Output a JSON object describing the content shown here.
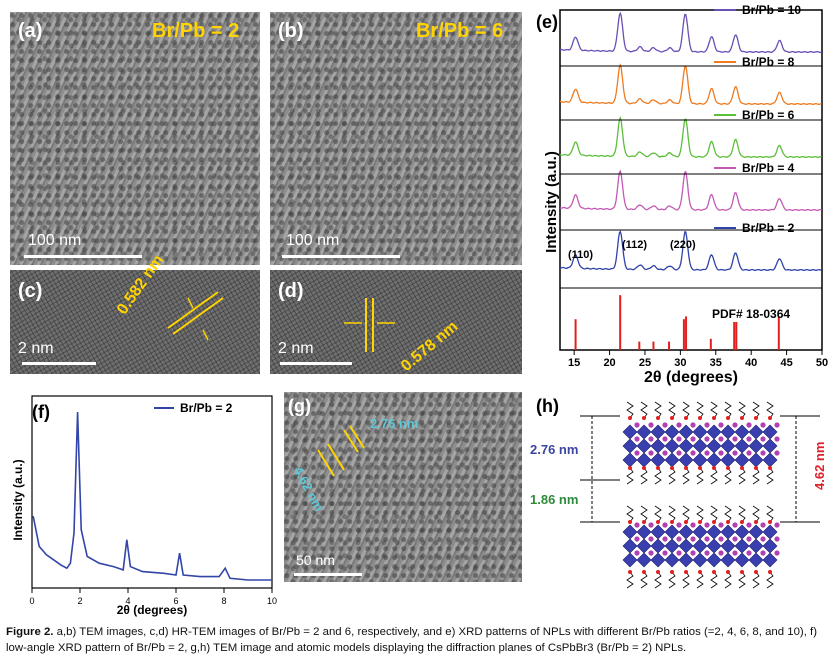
{
  "panel_a": {
    "label": "(a)",
    "ratio": "Br/Pb = 2",
    "scale": "100 nm"
  },
  "panel_b": {
    "label": "(b)",
    "ratio": "Br/Pb = 6",
    "scale": "100 nm"
  },
  "panel_c": {
    "label": "(c)",
    "spacing": "0.582 nm",
    "scale": "2 nm"
  },
  "panel_d": {
    "label": "(d)",
    "spacing": "0.578 nm",
    "scale": "2 nm"
  },
  "panel_e": {
    "label": "(e)",
    "ylabel": "Intensity (a.u.)",
    "xlabel": "2θ (degrees)",
    "xticks": [
      "15",
      "20",
      "25",
      "30",
      "35",
      "40",
      "45",
      "50"
    ],
    "peak_labels": [
      "(110)",
      "(112)",
      "(220)"
    ],
    "reference_label": "PDF# 18-0364",
    "series": [
      {
        "name": "Br/Pb = 10",
        "color": "#6a4fb5"
      },
      {
        "name": "Br/Pb = 8",
        "color": "#f07a1e"
      },
      {
        "name": "Br/Pb = 6",
        "color": "#5cbf3a"
      },
      {
        "name": "Br/Pb = 4",
        "color": "#c25ab5"
      },
      {
        "name": "Br/Pb = 2",
        "color": "#2f43a8"
      }
    ]
  },
  "panel_f": {
    "label": "(f)",
    "legend": "Br/Pb = 2",
    "ylabel": "Intensity (a.u.)",
    "xlabel": "2θ (degrees)",
    "xticks": [
      "0",
      "2",
      "4",
      "6",
      "8",
      "10"
    ]
  },
  "panel_g": {
    "label": "(g)",
    "d1": "2.76 nm",
    "d2": "4.62 nm",
    "scale": "50 nm"
  },
  "panel_h": {
    "label": "(h)",
    "d1": "2.76 nm",
    "d2": "1.86 nm",
    "d3": "4.62 nm"
  },
  "chart_data": [
    {
      "type": "line",
      "panel": "e",
      "xlabel": "2θ (degrees)",
      "ylabel": "Intensity (a.u.)",
      "xlim": [
        13,
        50
      ],
      "peaks_2theta": [
        15.2,
        21.5,
        24.3,
        26.2,
        28.5,
        30.7,
        34.4,
        37.8,
        44.0
      ],
      "peak_heights": [
        0.35,
        1.0,
        0.12,
        0.1,
        0.1,
        1.0,
        0.4,
        0.45,
        0.3
      ],
      "reference_lines": [
        15.2,
        21.5,
        24.2,
        26.2,
        28.4,
        30.5,
        30.8,
        34.3,
        37.6,
        37.9,
        43.9
      ],
      "reference_heights": [
        0.55,
        0.98,
        0.15,
        0.15,
        0.15,
        0.55,
        0.6,
        0.2,
        0.5,
        0.5,
        0.6
      ],
      "series": [
        {
          "name": "Br/Pb = 10"
        },
        {
          "name": "Br/Pb = 8"
        },
        {
          "name": "Br/Pb = 6"
        },
        {
          "name": "Br/Pb = 4"
        },
        {
          "name": "Br/Pb = 2"
        }
      ]
    },
    {
      "type": "line",
      "panel": "f",
      "xlabel": "2θ (degrees)",
      "ylabel": "Intensity (a.u.)",
      "xlim": [
        0,
        10
      ],
      "series": [
        {
          "name": "Br/Pb = 2",
          "x": [
            0.05,
            0.3,
            0.6,
            0.9,
            1.2,
            1.45,
            1.6,
            1.75,
            1.9,
            2.05,
            2.3,
            2.8,
            3.4,
            3.8,
            3.95,
            4.1,
            4.6,
            5.5,
            6.0,
            6.15,
            6.3,
            7.0,
            7.8,
            8.05,
            8.25,
            9.0,
            10.0
          ],
          "y": [
            0.38,
            0.2,
            0.15,
            0.12,
            0.09,
            0.07,
            0.1,
            0.28,
            1.0,
            0.3,
            0.14,
            0.1,
            0.08,
            0.06,
            0.24,
            0.08,
            0.05,
            0.04,
            0.03,
            0.16,
            0.03,
            0.02,
            0.02,
            0.07,
            0.01,
            0.0,
            0.0
          ]
        }
      ]
    }
  ],
  "caption": {
    "fig": "Figure 2.",
    "text": "a,b) TEM images, c,d) HR-TEM images of Br/Pb = 2 and 6, respectively, and e) XRD patterns of NPLs with different Br/Pb ratios (=2, 4, 6, 8, and 10), f) low-angle XRD pattern of Br/Pb = 2, g,h) TEM image and atomic models displaying the diffraction planes of CsPbBr3 (Br/Pb = 2) NPLs."
  }
}
